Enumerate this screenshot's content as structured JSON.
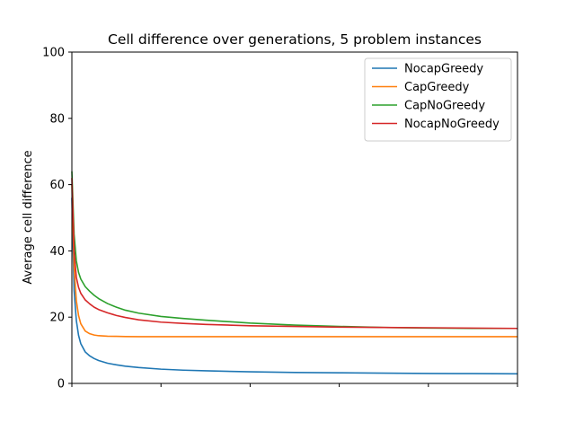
{
  "chart_data": {
    "type": "line",
    "title": "Cell difference over generations, 5 problem instances",
    "xlabel": "",
    "ylabel": "Average cell difference",
    "xlim": [
      0,
      100
    ],
    "ylim": [
      0,
      100
    ],
    "yticks": [
      0,
      20,
      40,
      60,
      80,
      100
    ],
    "xticks": [
      0,
      20,
      40,
      60,
      80,
      100
    ],
    "x_tick_labels_visible": false,
    "grid": false,
    "legend": "top-right",
    "x": [
      0,
      0.5,
      1,
      1.5,
      2,
      3,
      4,
      5,
      6,
      8,
      10,
      12,
      15,
      20,
      25,
      30,
      40,
      50,
      60,
      70,
      80,
      90,
      100
    ],
    "series": [
      {
        "name": "NocapGreedy",
        "color": "#1f77b4",
        "values": [
          56,
          28,
          19,
          14.5,
          12,
          9.5,
          8.3,
          7.5,
          6.9,
          6.1,
          5.6,
          5.2,
          4.8,
          4.3,
          4.0,
          3.8,
          3.5,
          3.3,
          3.2,
          3.1,
          3.0,
          2.95,
          2.9
        ]
      },
      {
        "name": "CapGreedy",
        "color": "#ff7f0e",
        "values": [
          60,
          35,
          25,
          20.5,
          18,
          15.8,
          15.0,
          14.6,
          14.4,
          14.25,
          14.2,
          14.15,
          14.1,
          14.1,
          14.1,
          14.1,
          14.1,
          14.1,
          14.1,
          14.1,
          14.1,
          14.1,
          14.1
        ]
      },
      {
        "name": "CapNoGreedy",
        "color": "#2ca02c",
        "values": [
          64,
          45,
          37,
          33.5,
          31.5,
          29.2,
          27.8,
          26.6,
          25.6,
          24.1,
          23.0,
          22.1,
          21.2,
          20.2,
          19.6,
          19.1,
          18.2,
          17.6,
          17.2,
          16.9,
          16.7,
          16.6,
          16.6
        ]
      },
      {
        "name": "NocapNoGreedy",
        "color": "#d62728",
        "values": [
          62,
          40,
          32,
          29,
          27.2,
          25.2,
          24.0,
          23.0,
          22.3,
          21.3,
          20.5,
          19.9,
          19.2,
          18.5,
          18.1,
          17.8,
          17.4,
          17.2,
          17.0,
          16.9,
          16.8,
          16.7,
          16.6
        ]
      }
    ]
  }
}
